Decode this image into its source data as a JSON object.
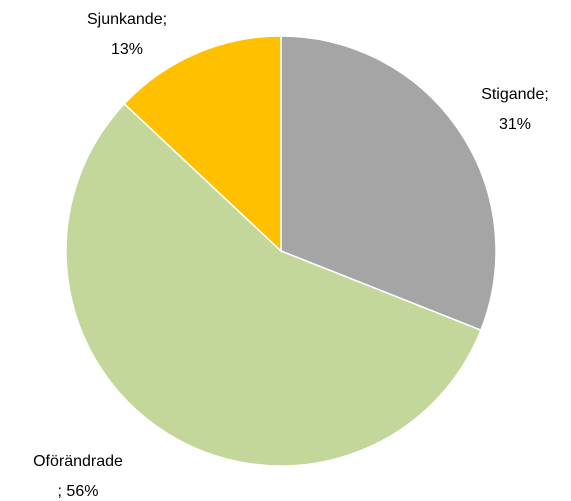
{
  "chart_data": {
    "type": "pie",
    "categories": [
      "Stigande;",
      "Oförändrade",
      "Sjunkande;"
    ],
    "values": [
      31,
      56,
      13
    ],
    "value_labels": [
      "31%",
      "; 56%",
      "13%"
    ],
    "colors": [
      "#a5a5a5",
      "#c4d79b",
      "#ffc000"
    ]
  }
}
